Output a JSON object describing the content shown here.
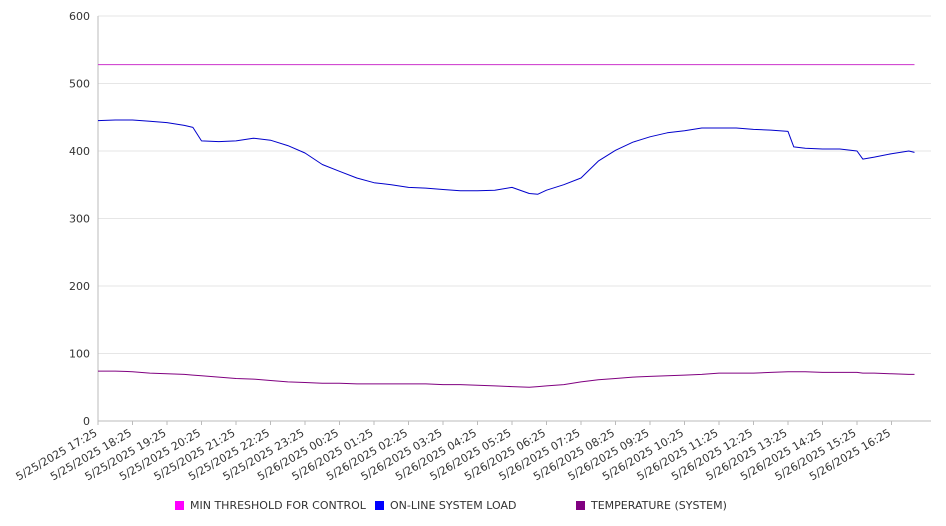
{
  "chart_data": {
    "type": "line",
    "title": "",
    "xlabel": "",
    "ylabel": "",
    "ylim": [
      0,
      600
    ],
    "y_ticks": [
      "0",
      "100",
      "200",
      "300",
      "400",
      "500",
      "600"
    ],
    "grid": true,
    "legend_position": "bottom",
    "x_tick_labels": [
      "5/25/2025 17:25",
      "5/25/2025 18:25",
      "5/25/2025 19:25",
      "5/25/2025 20:25",
      "5/25/2025 21:25",
      "5/25/2025 22:25",
      "5/25/2025 23:25",
      "5/26/2025 00:25",
      "5/26/2025 01:25",
      "5/26/2025 02:25",
      "5/26/2025 03:25",
      "5/26/2025 04:25",
      "5/26/2025 05:25",
      "5/26/2025 06:25",
      "5/26/2025 07:25",
      "5/26/2025 08:25",
      "5/26/2025 09:25",
      "5/26/2025 10:25",
      "5/26/2025 11:25",
      "5/26/2025 12:25",
      "5/26/2025 13:25",
      "5/26/2025 14:25",
      "5/26/2025 15:25",
      "5/26/2025 16:25"
    ],
    "x": [
      "5/25/2025 17:25",
      "5/25/2025 17:55",
      "5/25/2025 18:25",
      "5/25/2025 18:55",
      "5/25/2025 19:25",
      "5/25/2025 19:55",
      "5/25/2025 20:10",
      "5/25/2025 20:25",
      "5/25/2025 20:55",
      "5/25/2025 21:25",
      "5/25/2025 21:55",
      "5/25/2025 22:25",
      "5/25/2025 22:55",
      "5/25/2025 23:25",
      "5/25/2025 23:55",
      "5/26/2025 00:25",
      "5/26/2025 00:55",
      "5/26/2025 01:25",
      "5/26/2025 01:55",
      "5/26/2025 02:25",
      "5/26/2025 02:55",
      "5/26/2025 03:25",
      "5/26/2025 03:55",
      "5/26/2025 04:25",
      "5/26/2025 04:55",
      "5/26/2025 05:25",
      "5/26/2025 05:55",
      "5/26/2025 06:10",
      "5/26/2025 06:25",
      "5/26/2025 06:55",
      "5/26/2025 07:25",
      "5/26/2025 07:55",
      "5/26/2025 08:25",
      "5/26/2025 08:55",
      "5/26/2025 09:25",
      "5/26/2025 09:55",
      "5/26/2025 10:25",
      "5/26/2025 10:55",
      "5/26/2025 11:25",
      "5/26/2025 11:55",
      "5/26/2025 12:25",
      "5/26/2025 12:55",
      "5/26/2025 13:25",
      "5/26/2025 13:35",
      "5/26/2025 13:55",
      "5/26/2025 14:25",
      "5/26/2025 14:55",
      "5/26/2025 15:25",
      "5/26/2025 15:35",
      "5/26/2025 15:55",
      "5/26/2025 16:25",
      "5/26/2025 16:55",
      "5/26/2025 17:05"
    ],
    "series": [
      {
        "name": "MIN THRESHOLD FOR CONTROL",
        "color": "#cc33cc",
        "values": [
          528,
          528,
          528,
          528,
          528,
          528,
          528,
          528,
          528,
          528,
          528,
          528,
          528,
          528,
          528,
          528,
          528,
          528,
          528,
          528,
          528,
          528,
          528,
          528,
          528,
          528,
          528,
          528,
          528,
          528,
          528,
          528,
          528,
          528,
          528,
          528,
          528,
          528,
          528,
          528,
          528,
          528,
          528,
          528,
          528,
          528,
          528,
          528,
          528,
          528,
          528,
          528,
          528
        ]
      },
      {
        "name": "ON-LINE SYSTEM LOAD",
        "color": "#0000cc",
        "values": [
          445,
          446,
          446,
          444,
          442,
          438,
          435,
          415,
          414,
          415,
          419,
          416,
          408,
          397,
          380,
          370,
          360,
          353,
          350,
          346,
          345,
          343,
          341,
          341,
          342,
          346,
          337,
          336,
          342,
          350,
          360,
          385,
          401,
          413,
          421,
          427,
          430,
          434,
          434,
          434,
          432,
          431,
          429,
          406,
          404,
          403,
          403,
          400,
          388,
          391,
          396,
          400,
          398
        ]
      },
      {
        "name": "TEMPERATURE (SYSTEM)",
        "color": "#800080",
        "values": [
          74,
          74,
          73,
          71,
          70,
          69,
          68,
          67,
          65,
          63,
          62,
          60,
          58,
          57,
          56,
          56,
          55,
          55,
          55,
          55,
          55,
          54,
          54,
          53,
          52,
          51,
          50,
          51,
          52,
          54,
          58,
          61,
          63,
          65,
          66,
          67,
          68,
          69,
          71,
          71,
          71,
          72,
          73,
          73,
          73,
          72,
          72,
          72,
          71,
          71,
          70,
          69,
          69
        ]
      }
    ]
  },
  "legend": [
    {
      "label": "MIN THRESHOLD FOR CONTROL",
      "color": "#ff00ff"
    },
    {
      "label": "ON-LINE SYSTEM LOAD",
      "color": "#0000ff"
    },
    {
      "label": "TEMPERATURE (SYSTEM)",
      "color": "#800080"
    }
  ]
}
